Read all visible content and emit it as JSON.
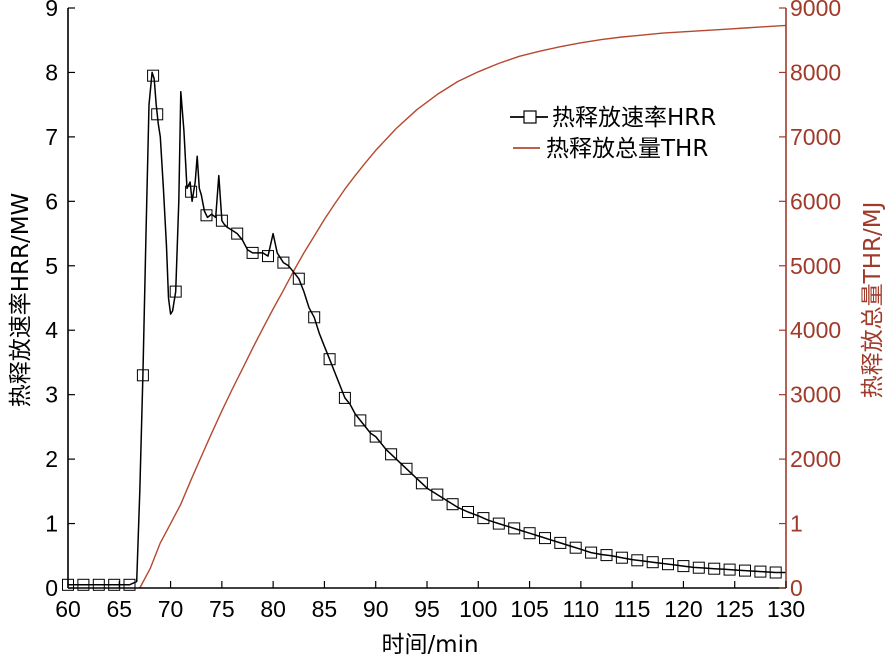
{
  "chart_data": {
    "type": "line",
    "x_label": "时间/min",
    "y_left_label": "热释放速率HRR/MW",
    "y_right_label": "热释放总量THR/MJ",
    "xlim": [
      60,
      130
    ],
    "ylim_left": [
      0,
      9
    ],
    "ylim_right": [
      0,
      9000
    ],
    "x_ticks": [
      "60",
      "65",
      "70",
      "75",
      "80",
      "85",
      "90",
      "95",
      "100",
      "105",
      "110",
      "115",
      "120",
      "125",
      "130"
    ],
    "y_left_ticks": [
      "0",
      "1",
      "2",
      "3",
      "4",
      "5",
      "6",
      "7",
      "8",
      "9"
    ],
    "y_right_ticks": [
      "0",
      "1",
      "2000",
      "3000",
      "4000",
      "5000",
      "6000",
      "7000",
      "8000",
      "9000"
    ],
    "colors": {
      "hrr": "#000000",
      "thr": "#b5492f",
      "right_axis": "#a03a2a"
    },
    "legend": [
      {
        "name": "热释放速率HRR",
        "series": "hrr"
      },
      {
        "name": "热释放总量THR",
        "series": "thr"
      }
    ],
    "series": [
      {
        "name": "热释放速率HRR",
        "key": "hrr",
        "axis": "left",
        "marker": "square",
        "x": [
          60,
          61,
          62,
          63,
          64,
          65,
          66,
          66.7,
          67,
          67.3,
          67.6,
          67.9,
          68.2,
          68.4,
          68.6,
          68.8,
          69,
          69.3,
          69.6,
          69.8,
          70,
          70.2,
          70.5,
          70.8,
          71,
          71.3,
          71.6,
          71.9,
          72.1,
          72.4,
          72.6,
          72.8,
          73,
          73.3,
          73.6,
          74,
          74.4,
          74.7,
          75,
          75.2,
          75.5,
          76,
          76.5,
          77,
          77.5,
          78,
          78.5,
          79,
          79.5,
          80,
          80.4,
          80.8,
          81,
          81.5,
          82,
          82.5,
          83,
          83.5,
          84,
          84.5,
          85,
          85.5,
          86,
          86.5,
          87,
          87.5,
          88,
          88.5,
          89,
          89.5,
          90,
          91,
          92,
          93,
          94,
          95,
          96,
          97,
          98,
          99,
          100,
          101,
          102,
          103,
          104,
          105,
          106,
          107,
          108,
          109,
          110,
          111,
          112,
          113,
          114,
          115,
          116,
          117,
          118,
          119,
          120,
          121,
          122,
          123,
          124,
          125,
          126,
          127,
          128,
          129,
          130
        ],
        "y": [
          0.05,
          0.05,
          0.05,
          0.05,
          0.05,
          0.05,
          0.05,
          0.1,
          1.5,
          3.3,
          5.5,
          7.5,
          8.0,
          7.9,
          7.5,
          7.2,
          7.0,
          6.2,
          5.3,
          4.5,
          4.25,
          4.3,
          4.6,
          6.0,
          7.7,
          7.1,
          6.2,
          6.3,
          6.0,
          6.3,
          6.7,
          6.2,
          6.1,
          5.85,
          5.75,
          5.8,
          5.75,
          6.4,
          5.7,
          5.65,
          5.6,
          5.55,
          5.5,
          5.4,
          5.25,
          5.2,
          5.2,
          5.2,
          5.15,
          5.5,
          5.2,
          5.1,
          5.05,
          5.0,
          4.9,
          4.8,
          4.6,
          4.35,
          4.2,
          3.95,
          3.75,
          3.55,
          3.35,
          3.15,
          2.95,
          2.85,
          2.7,
          2.6,
          2.5,
          2.4,
          2.35,
          2.15,
          2.0,
          1.85,
          1.7,
          1.55,
          1.45,
          1.35,
          1.25,
          1.18,
          1.12,
          1.05,
          1.0,
          0.95,
          0.9,
          0.85,
          0.8,
          0.75,
          0.7,
          0.65,
          0.6,
          0.55,
          0.52,
          0.5,
          0.47,
          0.44,
          0.42,
          0.4,
          0.38,
          0.36,
          0.34,
          0.32,
          0.31,
          0.3,
          0.29,
          0.28,
          0.27,
          0.26,
          0.25,
          0.24,
          0.24
        ]
      },
      {
        "name": "热释放总量THR",
        "key": "thr",
        "axis": "right",
        "marker": "none",
        "x": [
          67,
          68,
          69,
          70,
          71,
          72,
          73,
          74,
          75,
          76,
          77,
          78,
          79,
          80,
          81,
          82,
          83,
          84,
          85,
          86,
          87,
          88,
          89,
          90,
          92,
          94,
          96,
          98,
          100,
          102,
          104,
          106,
          108,
          110,
          112,
          114,
          116,
          118,
          120,
          122,
          124,
          126,
          128,
          130
        ],
        "y": [
          0,
          300,
          700,
          1000,
          1300,
          1680,
          2040,
          2400,
          2750,
          3080,
          3400,
          3720,
          4030,
          4330,
          4620,
          4920,
          5200,
          5460,
          5720,
          5960,
          6190,
          6400,
          6600,
          6790,
          7130,
          7420,
          7660,
          7860,
          8010,
          8140,
          8250,
          8330,
          8400,
          8460,
          8510,
          8550,
          8580,
          8610,
          8630,
          8650,
          8670,
          8690,
          8710,
          8730
        ]
      }
    ]
  }
}
